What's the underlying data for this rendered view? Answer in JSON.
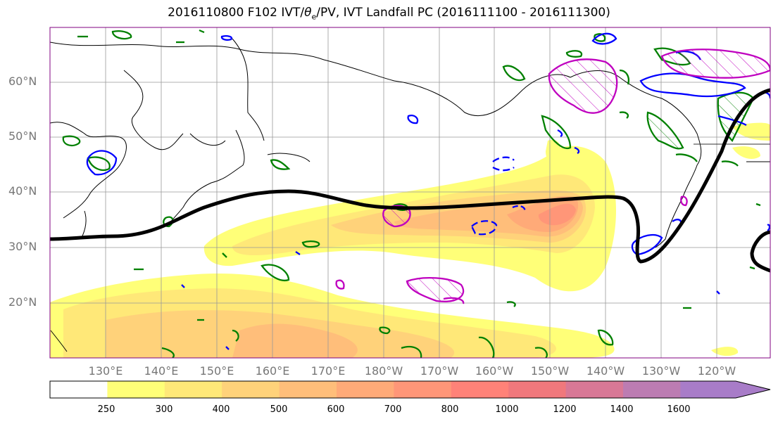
{
  "title": {
    "prefix": "2016110800 F102 IVT/",
    "theta": "θ",
    "theta_sub": "e",
    "suffix": "/PV, IVT Landfall PC (2016111100 - 2016111300)"
  },
  "map": {
    "latitude_labels": [
      "60°N",
      "50°N",
      "40°N",
      "30°N",
      "20°N"
    ],
    "longitude_labels": [
      "130°E",
      "140°E",
      "150°E",
      "160°E",
      "170°E",
      "180°W",
      "170°W",
      "160°W",
      "150°W",
      "140°W",
      "130°W",
      "120°W"
    ],
    "contour_colors": {
      "ivt_line": "#000000",
      "green": "#008000",
      "blue": "#0000ff",
      "magenta": "#bf00bf"
    }
  },
  "colorbar": {
    "levels": [
      "250",
      "300",
      "400",
      "500",
      "600",
      "700",
      "800",
      "1000",
      "1200",
      "1400",
      "1600"
    ],
    "colors": [
      "#ffff78",
      "#ffe878",
      "#ffd27a",
      "#ffbe7a",
      "#ffaa78",
      "#ff9678",
      "#ff8278",
      "#f0787c",
      "#d87896",
      "#bc7cb2",
      "#a87cc8"
    ],
    "extend": "max"
  }
}
